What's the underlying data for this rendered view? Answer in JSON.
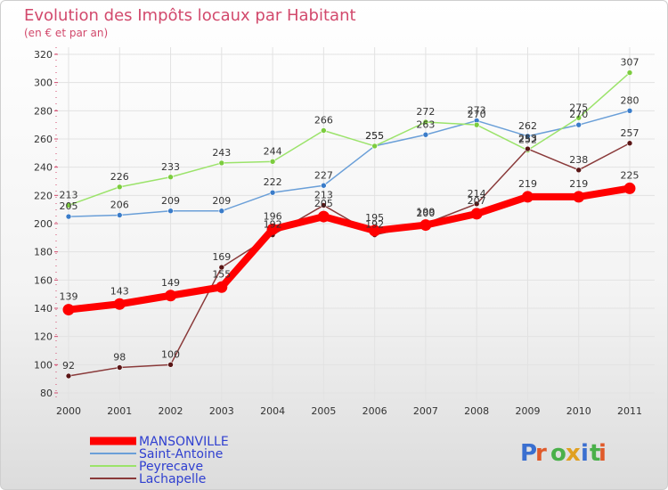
{
  "chart_data": {
    "type": "line",
    "title": "Evolution des Impôts locaux par Habitant",
    "subtitle": "(en € et par an)",
    "x": [
      "2000",
      "2001",
      "2002",
      "2003",
      "2004",
      "2005",
      "2006",
      "2007",
      "2008",
      "2009",
      "2010",
      "2011"
    ],
    "ylim": [
      80,
      320
    ],
    "yticks": [
      80,
      100,
      120,
      140,
      160,
      180,
      200,
      220,
      240,
      260,
      280,
      300,
      320
    ],
    "grid": true,
    "series": [
      {
        "name": "Saint-Antoine",
        "color": "#6a9fd8",
        "dot": "#3a7cc9",
        "emphasis": false,
        "values": [
          205,
          206,
          209,
          209,
          222,
          227,
          255,
          263,
          273,
          262,
          270,
          280
        ],
        "labels": [
          "205",
          "206",
          "209",
          "209",
          "222",
          "227",
          "255",
          "263",
          "273",
          "262",
          "270",
          "280"
        ]
      },
      {
        "name": "Peyrecave",
        "color": "#9be36a",
        "dot": "#7ccc3e",
        "emphasis": false,
        "values": [
          213,
          226,
          233,
          243,
          244,
          266,
          255,
          272,
          270,
          252,
          275,
          307
        ],
        "labels": [
          "213",
          "226",
          "233",
          "243",
          "244",
          "266",
          "255",
          "272",
          "270",
          "252",
          "275",
          "307"
        ]
      },
      {
        "name": "Lachapelle",
        "color": "#8a3a3a",
        "dot": "#5a1616",
        "emphasis": false,
        "values": [
          92,
          98,
          100,
          169,
          192,
          213,
          192,
          200,
          214,
          253,
          238,
          257
        ],
        "labels": [
          "92",
          "98",
          "100",
          "169",
          "192",
          "213",
          "192",
          "200",
          "214",
          "253",
          "238",
          "257"
        ]
      },
      {
        "name": "MANSONVILLE",
        "color": "#ff0000",
        "dot": "#ff0000",
        "emphasis": true,
        "values": [
          139,
          143,
          149,
          155,
          196,
          205,
          195,
          199,
          207,
          219,
          219,
          225
        ],
        "labels": [
          "139",
          "143",
          "149",
          "155",
          "196",
          "205",
          "195",
          "199",
          "207",
          "219",
          "219",
          "225"
        ]
      }
    ],
    "legend_order": [
      "MANSONVILLE",
      "Saint-Antoine",
      "Peyrecave",
      "Lachapelle"
    ],
    "legend_position": "bottom-left"
  },
  "logo": {
    "letters": [
      "P",
      "r",
      "o",
      "x",
      "i",
      "t",
      "i"
    ],
    "colors": [
      "#3a6fd0",
      "#e05a2a",
      "#4ab04a",
      "#e0a020",
      "#3a6fd0",
      "#4ab04a",
      "#e05a2a"
    ]
  }
}
